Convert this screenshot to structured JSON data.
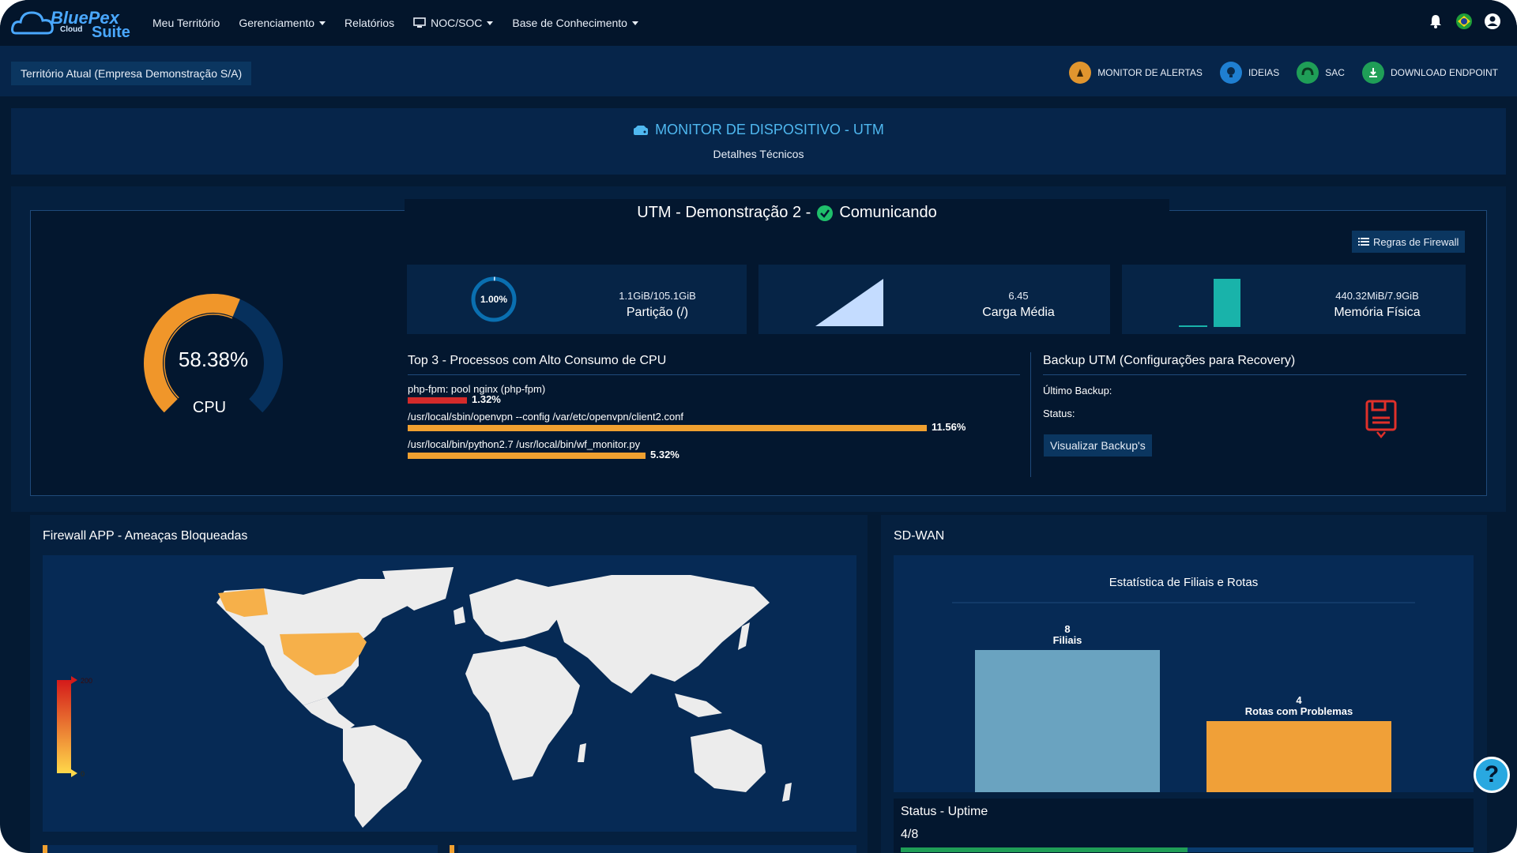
{
  "app": {
    "logo_line1": "BluePex",
    "logo_line2": "Cloud",
    "logo_line3": "Suite"
  },
  "nav": {
    "items": [
      {
        "label": "Meu Território",
        "dropdown": false
      },
      {
        "label": "Gerenciamento",
        "dropdown": true
      },
      {
        "label": "Relatórios",
        "dropdown": false
      },
      {
        "label": "NOC/SOC",
        "dropdown": true,
        "icon": "monitor-icon"
      },
      {
        "label": "Base de Conhecimento",
        "dropdown": true
      }
    ],
    "right_icons": [
      "bell-icon",
      "brazil-flag-icon",
      "user-icon"
    ]
  },
  "subbar": {
    "territory": "Território Atual (Empresa Demonstração S/A)",
    "quick_links": [
      {
        "label": "MONITOR DE ALERTAS",
        "icon": "alert-monitor-icon",
        "color": "#e0952e"
      },
      {
        "label": "IDEIAS",
        "icon": "lightbulb-icon",
        "color": "#1f7fd1"
      },
      {
        "label": "SAC",
        "icon": "headset-icon",
        "color": "#1f9e57"
      },
      {
        "label": "DOWNLOAD ENDPOINT",
        "icon": "download-icon",
        "color": "#1f9e57"
      }
    ]
  },
  "header": {
    "title": "MONITOR DE DISPOSITIVO - UTM",
    "subtitle": "Detalhes Técnicos",
    "icon": "server-icon"
  },
  "device": {
    "title": "UTM - Demonstração 2 -",
    "status": "Comunicando",
    "status_color": "#1fbf6b",
    "firewall_button": "Regras de Firewall",
    "cpu": {
      "value": "58.38%",
      "label": "CPU",
      "fraction": 0.5838
    },
    "partition": {
      "percent": "1.00%",
      "value": "1.1GiB/105.1GiB",
      "label": "Partição (/)",
      "fraction": 0.01
    },
    "load": {
      "value": "6.45",
      "label": "Carga Média"
    },
    "memory": {
      "value": "440.32MiB/7.9GiB",
      "label": "Memória Física"
    },
    "top_processes": {
      "title": "Top 3 - Processos com Alto Consumo de CPU",
      "items": [
        {
          "name": "php-fpm: pool nginx (php-fpm)",
          "percent": "1.32%",
          "fraction": 0.1138,
          "color": "#d42a2a"
        },
        {
          "name": "/usr/local/sbin/openvpn --config /var/etc/openvpn/client2.conf",
          "percent": "11.56%",
          "fraction": 1.0,
          "color": "#f0a030"
        },
        {
          "name": "/usr/local/bin/python2.7 /usr/local/bin/wf_monitor.py",
          "percent": "5.32%",
          "fraction": 0.4586,
          "color": "#f0a030"
        }
      ]
    },
    "backup": {
      "title": "Backup UTM (Configurações para Recovery)",
      "last_label": "Último Backup:",
      "status_label": "Status:",
      "button": "Visualizar Backup's",
      "icon": "floppy-disk-icon"
    }
  },
  "firewall_app": {
    "title": "Firewall APP - Ameaças Bloqueadas",
    "legend_top": "200",
    "legend_bottom": "0"
  },
  "sdwan": {
    "title": "SD-WAN",
    "chart_data": {
      "type": "bar",
      "title": "Estatística de Filiais e Rotas",
      "categories": [
        "Filiais",
        "Rotas com Problemas"
      ],
      "values": [
        8,
        4
      ],
      "colors": [
        "#6aa3c0",
        "#f0a038"
      ]
    },
    "uptime_title": "Status - Uptime",
    "uptime_value": "4/8"
  },
  "help": {
    "label": "?"
  }
}
